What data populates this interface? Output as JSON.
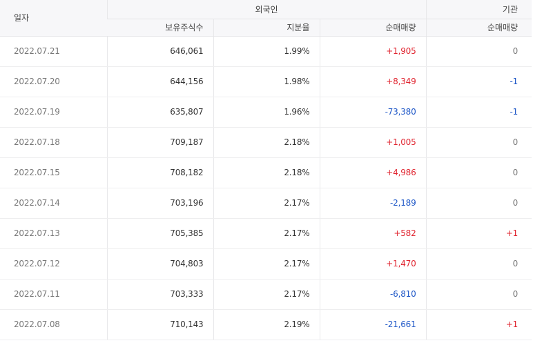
{
  "headers": {
    "date": "일자",
    "foreign": "외국인",
    "institution": "기관",
    "holdings": "보유주식수",
    "ratio": "지분율",
    "foreign_net": "순매매량",
    "inst_net": "순매매량"
  },
  "colors": {
    "up": "#e0242f",
    "down": "#1e57c7",
    "flat": "#777777"
  },
  "rows": [
    {
      "date": "2022.07.21",
      "holdings": "646,061",
      "ratio": "1.99%",
      "foreign_net": "+1,905",
      "inst_net": "0"
    },
    {
      "date": "2022.07.20",
      "holdings": "644,156",
      "ratio": "1.98%",
      "foreign_net": "+8,349",
      "inst_net": "-1"
    },
    {
      "date": "2022.07.19",
      "holdings": "635,807",
      "ratio": "1.96%",
      "foreign_net": "-73,380",
      "inst_net": "-1"
    },
    {
      "date": "2022.07.18",
      "holdings": "709,187",
      "ratio": "2.18%",
      "foreign_net": "+1,005",
      "inst_net": "0"
    },
    {
      "date": "2022.07.15",
      "holdings": "708,182",
      "ratio": "2.18%",
      "foreign_net": "+4,986",
      "inst_net": "0"
    },
    {
      "date": "2022.07.14",
      "holdings": "703,196",
      "ratio": "2.17%",
      "foreign_net": "-2,189",
      "inst_net": "0"
    },
    {
      "date": "2022.07.13",
      "holdings": "705,385",
      "ratio": "2.17%",
      "foreign_net": "+582",
      "inst_net": "+1"
    },
    {
      "date": "2022.07.12",
      "holdings": "704,803",
      "ratio": "2.17%",
      "foreign_net": "+1,470",
      "inst_net": "0"
    },
    {
      "date": "2022.07.11",
      "holdings": "703,333",
      "ratio": "2.17%",
      "foreign_net": "-6,810",
      "inst_net": "0"
    },
    {
      "date": "2022.07.08",
      "holdings": "710,143",
      "ratio": "2.19%",
      "foreign_net": "-21,661",
      "inst_net": "+1"
    }
  ]
}
